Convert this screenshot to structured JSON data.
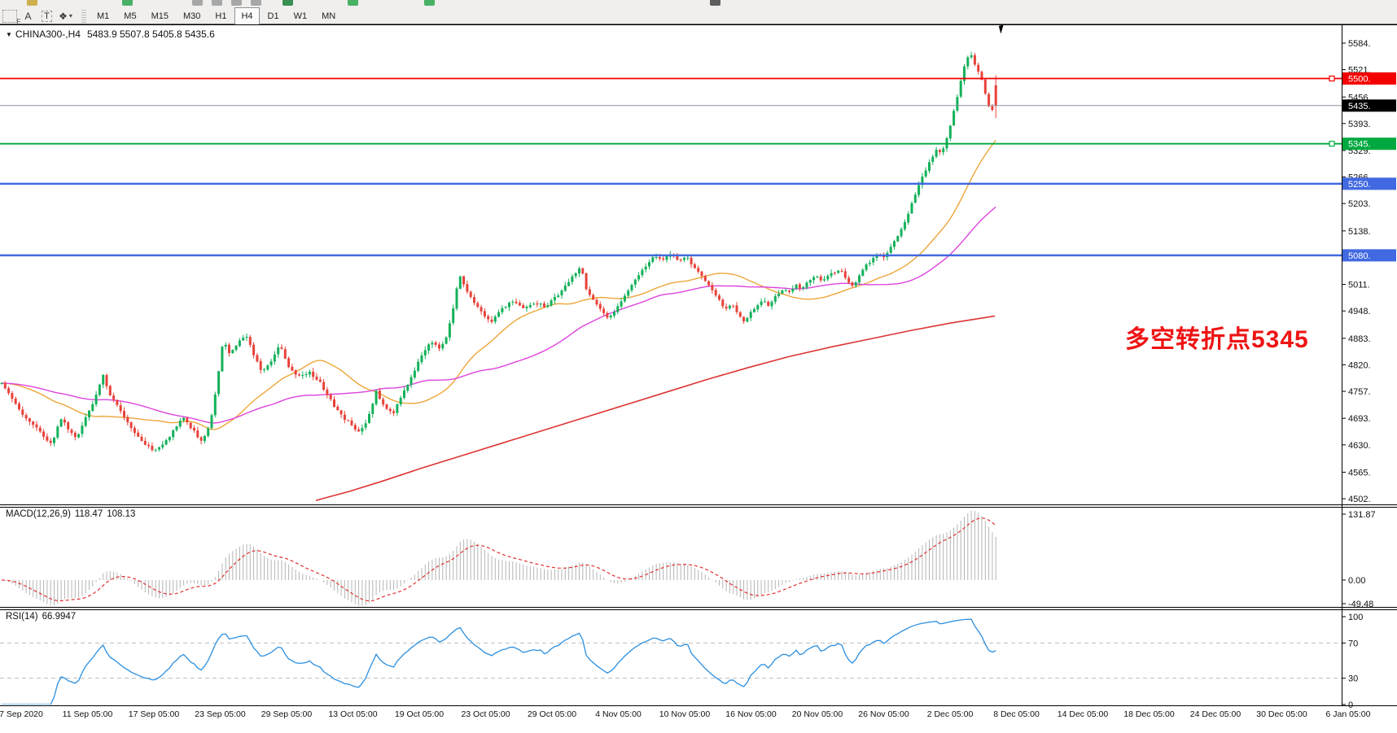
{
  "toolbar": {
    "tools": [
      {
        "id": "crosshair-grid",
        "label": "F"
      },
      {
        "id": "text-label",
        "label": "A"
      },
      {
        "id": "text-box",
        "label": "T"
      },
      {
        "id": "shapes",
        "glyph": "❖",
        "caret": "▾"
      }
    ],
    "timeframes": [
      "M1",
      "M5",
      "M15",
      "M30",
      "H1",
      "H4",
      "D1",
      "W1",
      "MN"
    ],
    "active_timeframe": "H4"
  },
  "window": {
    "dropdown_glyph": "▼",
    "symbol_line": "CHINA300-,H4",
    "ohlc_line": "5483.9 5507.8 5405.8 5435.6"
  },
  "chart_data": {
    "type": "candlestick",
    "symbol": "CHINA300-",
    "timeframe": "H4",
    "current_bar": {
      "open": 5483.9,
      "high": 5507.8,
      "low": 5405.8,
      "close": 5435.6
    },
    "candle_colors": {
      "up": "#13b15a",
      "down": "#e8423a"
    },
    "y_axis": {
      "ticks": [
        "5584.",
        "5521.",
        "5456.",
        "5393.",
        "5329.",
        "5266.",
        "5203.",
        "5138.",
        "5011.",
        "4948.",
        "4883.",
        "4820.",
        "4757.",
        "4693.",
        "4630.",
        "4565.",
        "4502."
      ]
    },
    "levels": [
      {
        "price": 5500,
        "label": "5500.",
        "color": "#f40000",
        "type": "resistance-line",
        "marker": true
      },
      {
        "price": 5435.6,
        "label": "5435.",
        "color": "#000000",
        "type": "current-price-line",
        "marker": false
      },
      {
        "price": 5345,
        "label": "5345.",
        "color": "#00a93f",
        "type": "pivot-line",
        "marker": true
      },
      {
        "price": 5250,
        "label": "5250.",
        "color": "#4169e1",
        "type": "support-line",
        "marker": false
      },
      {
        "price": 5080,
        "label": "5080.",
        "color": "#4169e1",
        "type": "support-line",
        "marker": false
      }
    ],
    "annotation": {
      "text": "多空转折点5345",
      "color": "#ee1414"
    },
    "price_path": [
      [
        2,
        4775
      ],
      [
        14,
        4745
      ],
      [
        26,
        4705
      ],
      [
        40,
        4682
      ],
      [
        54,
        4648
      ],
      [
        64,
        4628
      ],
      [
        74,
        4695
      ],
      [
        84,
        4668
      ],
      [
        94,
        4642
      ],
      [
        104,
        4688
      ],
      [
        116,
        4735
      ],
      [
        127,
        4798
      ],
      [
        133,
        4752
      ],
      [
        145,
        4722
      ],
      [
        160,
        4672
      ],
      [
        174,
        4640
      ],
      [
        188,
        4614
      ],
      [
        200,
        4632
      ],
      [
        212,
        4660
      ],
      [
        224,
        4696
      ],
      [
        236,
        4668
      ],
      [
        248,
        4636
      ],
      [
        258,
        4680
      ],
      [
        267,
        4782
      ],
      [
        274,
        4878
      ],
      [
        282,
        4845
      ],
      [
        292,
        4872
      ],
      [
        302,
        4892
      ],
      [
        312,
        4842
      ],
      [
        322,
        4802
      ],
      [
        334,
        4830
      ],
      [
        344,
        4868
      ],
      [
        355,
        4812
      ],
      [
        368,
        4792
      ],
      [
        380,
        4802
      ],
      [
        392,
        4782
      ],
      [
        404,
        4742
      ],
      [
        417,
        4704
      ],
      [
        429,
        4682
      ],
      [
        441,
        4660
      ],
      [
        452,
        4692
      ],
      [
        462,
        4758
      ],
      [
        472,
        4722
      ],
      [
        482,
        4702
      ],
      [
        492,
        4740
      ],
      [
        504,
        4788
      ],
      [
        517,
        4838
      ],
      [
        529,
        4878
      ],
      [
        539,
        4858
      ],
      [
        549,
        4888
      ],
      [
        557,
        4958
      ],
      [
        564,
        5038
      ],
      [
        572,
        5002
      ],
      [
        580,
        4972
      ],
      [
        592,
        4942
      ],
      [
        604,
        4924
      ],
      [
        617,
        4954
      ],
      [
        631,
        4974
      ],
      [
        644,
        4954
      ],
      [
        657,
        4968
      ],
      [
        671,
        4958
      ],
      [
        684,
        4984
      ],
      [
        697,
        5012
      ],
      [
        707,
        5040
      ],
      [
        714,
        5052
      ],
      [
        721,
        4992
      ],
      [
        729,
        4972
      ],
      [
        737,
        4952
      ],
      [
        747,
        4930
      ],
      [
        755,
        4944
      ],
      [
        764,
        4974
      ],
      [
        774,
        5004
      ],
      [
        784,
        5034
      ],
      [
        794,
        5058
      ],
      [
        804,
        5078
      ],
      [
        814,
        5068
      ],
      [
        824,
        5086
      ],
      [
        834,
        5064
      ],
      [
        844,
        5076
      ],
      [
        851,
        5056
      ],
      [
        859,
        5040
      ],
      [
        867,
        5018
      ],
      [
        875,
        4996
      ],
      [
        883,
        4974
      ],
      [
        891,
        4950
      ],
      [
        899,
        4964
      ],
      [
        907,
        4940
      ],
      [
        914,
        4920
      ],
      [
        921,
        4944
      ],
      [
        929,
        4960
      ],
      [
        937,
        4976
      ],
      [
        945,
        4960
      ],
      [
        953,
        4984
      ],
      [
        961,
        5000
      ],
      [
        969,
        4990
      ],
      [
        977,
        5010
      ],
      [
        985,
        5000
      ],
      [
        993,
        5020
      ],
      [
        1001,
        5030
      ],
      [
        1011,
        5020
      ],
      [
        1021,
        5036
      ],
      [
        1031,
        5046
      ],
      [
        1039,
        5026
      ],
      [
        1047,
        5006
      ],
      [
        1055,
        5030
      ],
      [
        1063,
        5054
      ],
      [
        1071,
        5070
      ],
      [
        1079,
        5086
      ],
      [
        1087,
        5076
      ],
      [
        1095,
        5100
      ],
      [
        1103,
        5126
      ],
      [
        1111,
        5158
      ],
      [
        1119,
        5198
      ],
      [
        1127,
        5238
      ],
      [
        1135,
        5274
      ],
      [
        1143,
        5306
      ],
      [
        1151,
        5336
      ],
      [
        1157,
        5322
      ],
      [
        1163,
        5356
      ],
      [
        1169,
        5400
      ],
      [
        1175,
        5450
      ],
      [
        1181,
        5504
      ],
      [
        1187,
        5544
      ],
      [
        1192,
        5560
      ],
      [
        1197,
        5536
      ],
      [
        1202,
        5514
      ],
      [
        1207,
        5490
      ],
      [
        1212,
        5446
      ],
      [
        1217,
        5420
      ],
      [
        1222,
        5435.6
      ]
    ],
    "moving_averages": [
      {
        "name": "fast-ma",
        "color": "#eda63a",
        "period": 30
      },
      {
        "name": "medium-ma",
        "color": "#dd44dd",
        "period": 60
      },
      {
        "name": "slow-ma",
        "color": "#dd3434",
        "path": [
          [
            388,
            4498
          ],
          [
            430,
            4520
          ],
          [
            470,
            4544
          ],
          [
            520,
            4576
          ],
          [
            570,
            4606
          ],
          [
            620,
            4636
          ],
          [
            670,
            4666
          ],
          [
            720,
            4696
          ],
          [
            770,
            4726
          ],
          [
            820,
            4756
          ],
          [
            870,
            4786
          ],
          [
            920,
            4814
          ],
          [
            970,
            4840
          ],
          [
            1020,
            4862
          ],
          [
            1070,
            4882
          ],
          [
            1120,
            4902
          ],
          [
            1170,
            4920
          ],
          [
            1222,
            4936
          ]
        ]
      }
    ],
    "x_axis": {
      "labels": [
        "7 Sep 2020",
        "11 Sep 05:00",
        "17 Sep 05:00",
        "23 Sep 05:00",
        "29 Sep 05:00",
        "13 Oct 05:00",
        "19 Oct 05:00",
        "23 Oct 05:00",
        "29 Oct 05:00",
        "4 Nov 05:00",
        "10 Nov 05:00",
        "16 Nov 05:00",
        "20 Nov 05:00",
        "26 Nov 05:00",
        "2 Dec 05:00",
        "8 Dec 05:00",
        "14 Dec 05:00",
        "18 Dec 05:00",
        "24 Dec 05:00",
        "30 Dec 05:00",
        "6 Jan 05:00"
      ]
    },
    "indicators": [
      {
        "name": "MACD",
        "params": "(12,26,9)",
        "value_main": "118.47",
        "value_signal": "108.13",
        "axis_ticks": [
          "131.87",
          "0.00",
          "-49.48"
        ],
        "axis_values": [
          131.87,
          0,
          -49.48
        ],
        "histogram_color": "#b4b4b4",
        "signal_color": "#e03030"
      },
      {
        "name": "RSI",
        "params": "(14)",
        "value": "66.9947",
        "axis_ticks": [
          "100",
          "70",
          "30",
          "0"
        ],
        "axis_values": [
          100,
          70,
          30,
          0
        ],
        "line_color": "#2b8fe0",
        "level_lines": [
          70,
          30
        ]
      }
    ]
  }
}
